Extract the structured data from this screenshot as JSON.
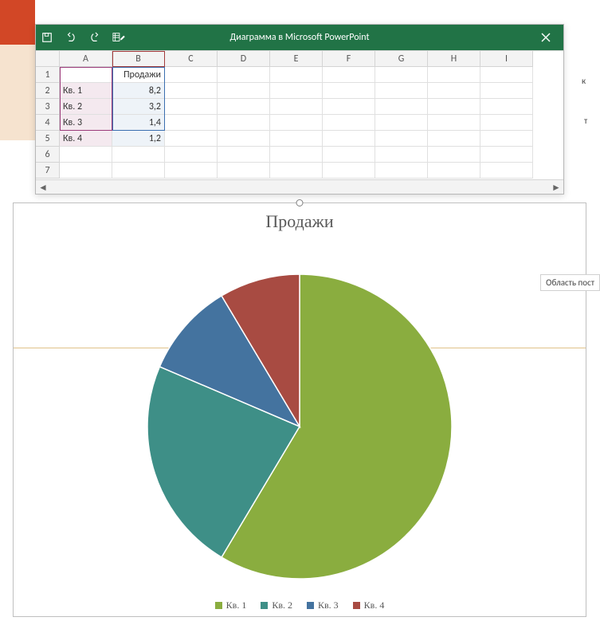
{
  "ribbon_hint": {
    "left_bg": "#d24726"
  },
  "pp_side": {
    "txt": "к",
    "k": "т"
  },
  "excel": {
    "titlebar_bg": "#217346",
    "title": "Диаграмма в Microsoft PowerPoint",
    "columns": [
      "A",
      "B",
      "C",
      "D",
      "E",
      "F",
      "G",
      "H",
      "I"
    ],
    "row_count": 7,
    "data": {
      "B1": "Продажи",
      "A2": "Кв. 1",
      "B2": "8,2",
      "A3": "Кв. 2",
      "B3": "3,2",
      "A4": "Кв. 3",
      "B4": "1,4",
      "A5": "Кв. 4",
      "B5": "1,2"
    }
  },
  "chart": {
    "type": "pie",
    "title": "Продажи",
    "title_fontsize": 22,
    "title_color": "#595959",
    "background_color": "#ffffff",
    "categories": [
      "Кв. 1",
      "Кв. 2",
      "Кв. 3",
      "Кв. 4"
    ],
    "values": [
      8.2,
      3.2,
      1.4,
      1.2
    ],
    "colors": [
      "#8aad3f",
      "#3e8f87",
      "#44739f",
      "#a84b42"
    ],
    "legend_position": "bottom",
    "legend_fontsize": 12,
    "radius": 191,
    "start_angle_deg": -90
  },
  "side_label": "Область пост"
}
